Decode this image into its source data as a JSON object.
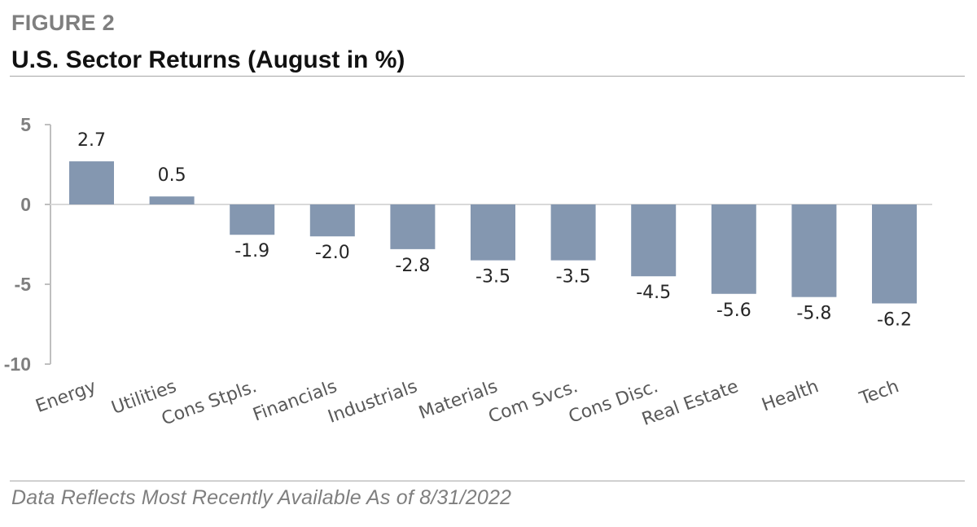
{
  "header": {
    "figure_label": "FIGURE 2",
    "title": "U.S. Sector Returns (August in %)"
  },
  "footer": {
    "note": "Data Reflects Most Recently Available As of 8/31/2022"
  },
  "colors": {
    "bar": "#8497b0",
    "axis": "#bfbfbf",
    "zero_line": "#d9d9d9"
  },
  "chart_data": {
    "type": "bar",
    "title": "U.S. Sector Returns (August in %)",
    "xlabel": "",
    "ylabel": "",
    "categories": [
      "Energy",
      "Utilities",
      "Cons Stpls.",
      "Financials",
      "Industrials",
      "Materials",
      "Com Svcs.",
      "Cons Disc.",
      "Real Estate",
      "Health",
      "Tech"
    ],
    "values": [
      2.7,
      0.5,
      -1.9,
      -2.0,
      -2.8,
      -3.5,
      -3.5,
      -4.5,
      -5.6,
      -5.8,
      -6.2
    ],
    "data_labels": [
      "2.7",
      "0.5",
      "-1.9",
      "-2.0",
      "-2.8",
      "-3.5",
      "-3.5",
      "-4.5",
      "-5.6",
      "-5.8",
      "-6.2"
    ],
    "ylim": [
      -10,
      5
    ],
    "yticks": [
      5,
      0,
      -5,
      -10
    ],
    "ytick_labels": [
      "5",
      "0",
      "-5",
      "-10"
    ],
    "grid": false,
    "legend": "none"
  }
}
